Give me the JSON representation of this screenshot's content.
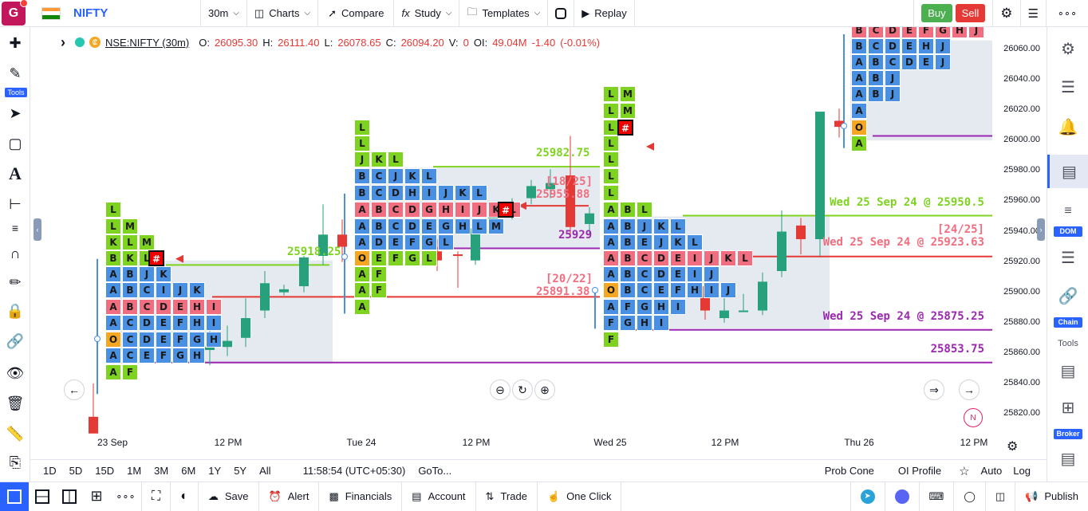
{
  "topbar": {
    "avatar": "G",
    "symbol": "NIFTY",
    "interval": "30m",
    "charts": "Charts",
    "compare": "Compare",
    "study": "Study",
    "templates": "Templates",
    "replay": "Replay",
    "buy": "Buy",
    "sell": "Sell",
    "flag_colors": [
      "#ff9933",
      "#ffffff",
      "#138808"
    ]
  },
  "left_toolbar": {
    "tools_label": "Tools"
  },
  "legend": {
    "symbol": "NSE:NIFTY (30m)",
    "o_label": "O:",
    "o": "26095.30",
    "h_label": "H:",
    "h": "26111.40",
    "l_label": "L:",
    "l": "26078.65",
    "c_label": "C:",
    "c": "26094.20",
    "v_label": "V:",
    "v": "0",
    "oi_label": "OI:",
    "oi": "49.04M",
    "change": "-1.40",
    "change_pct": "(-0.01%)"
  },
  "price_axis": [
    "26060.00",
    "26040.00",
    "26020.00",
    "26000.00",
    "25980.00",
    "25960.00",
    "25940.00",
    "25920.00",
    "25900.00",
    "25880.00",
    "25860.00",
    "25840.00",
    "25820.00"
  ],
  "time_axis": [
    "23 Sep",
    "12 PM",
    "Tue 24",
    "12 PM",
    "Wed 25",
    "12 PM",
    "Thu 26",
    "12 PM"
  ],
  "annotations": {
    "a1": "25982.75",
    "a2": "[18/25]",
    "a3": "25955.88",
    "a4": "25929",
    "a5": "25918.25",
    "a6": "[20/22]",
    "a7": "25891.38",
    "a8": "Wed 25 Sep 24 @ 25950.5",
    "a9": "[24/25]",
    "a10": "Wed 25 Sep 24 @ 25923.63",
    "a11": "Wed 25 Sep 24 @ 25875.25",
    "a12": "25853.75"
  },
  "tpo_marker": "#",
  "bottom_bar1": {
    "r1d": "1D",
    "r5d": "5D",
    "r15d": "15D",
    "r1m": "1M",
    "r3m": "3M",
    "r6m": "6M",
    "r1y": "1Y",
    "r5y": "5Y",
    "rall": "All",
    "clock": "11:58:54 (UTC+05:30)",
    "goto": "GoTo...",
    "prob_cone": "Prob Cone",
    "oi_profile": "OI Profile",
    "auto": "Auto",
    "log": "Log"
  },
  "bottom_bar2": {
    "save": "Save",
    "alert": "Alert",
    "financials": "Financials",
    "account": "Account",
    "trade": "Trade",
    "one_click": "One Click",
    "publish": "Publish"
  },
  "right_toolbar": {
    "dom": "DOM",
    "chain": "Chain",
    "tools": "Tools",
    "broker": "Broker"
  },
  "badge_n": "N",
  "colors": {
    "green": "#7ed321",
    "blue": "#4a90e2",
    "red": "#f06e7f",
    "orange": "#f5a623",
    "candle_up": "#26a17b",
    "candle_down": "#e53935",
    "purple": "#9c27b0",
    "va": "#dfe3ec"
  }
}
